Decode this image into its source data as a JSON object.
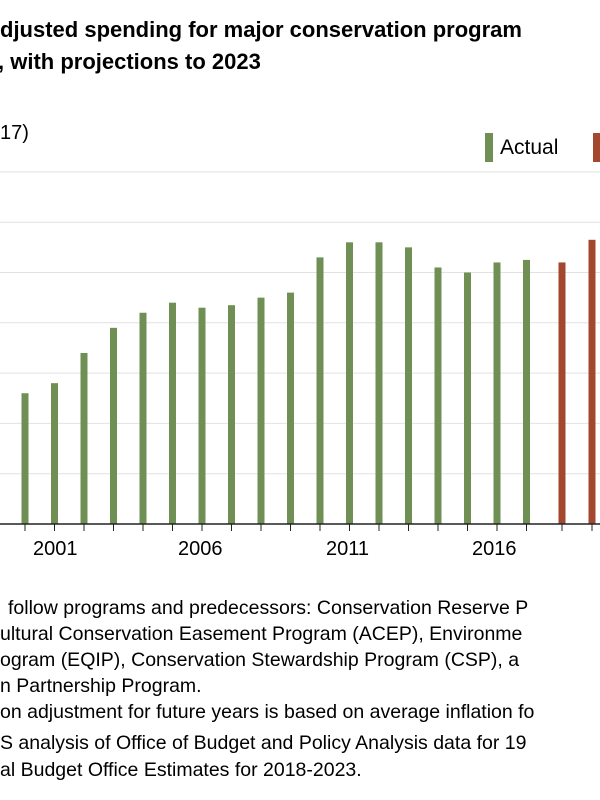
{
  "title_lines": [
    "djusted spending for major conservation program",
    ", with projections to 2023"
  ],
  "unit_label": "17)",
  "legend": [
    {
      "label": "Actual",
      "color": "#6f8f55"
    },
    {
      "label": "",
      "color": "#a3472f"
    }
  ],
  "chart_data": {
    "type": "bar",
    "title": "…djusted spending for major conservation program… , with projections to 2023",
    "ylabel": "…17)",
    "ylim": [
      0,
      7
    ],
    "grid": true,
    "legend_position": "top-right",
    "x_tick_labels": [
      "2001",
      "2006",
      "2011",
      "2016"
    ],
    "categories": [
      2000,
      2001,
      2002,
      2003,
      2004,
      2005,
      2006,
      2007,
      2008,
      2009,
      2010,
      2011,
      2012,
      2013,
      2014,
      2015,
      2016,
      2017,
      2018,
      2019
    ],
    "series": [
      {
        "name": "Actual",
        "color": "#6f8f55",
        "x": [
          2000,
          2001,
          2002,
          2003,
          2004,
          2005,
          2006,
          2007,
          2008,
          2009,
          2010,
          2011,
          2012,
          2013,
          2014,
          2015,
          2016,
          2017
        ],
        "values": [
          2.6,
          2.8,
          3.4,
          3.9,
          4.2,
          4.4,
          4.3,
          4.35,
          4.5,
          4.6,
          5.3,
          5.6,
          5.6,
          5.5,
          5.1,
          5.0,
          5.2,
          5.25
        ]
      },
      {
        "name": "",
        "color": "#a3472f",
        "x": [
          2018,
          2019
        ],
        "values": [
          5.2,
          5.65
        ]
      }
    ]
  },
  "footnote_lines": [
    "follow programs and predecessors: Conservation Reserve P",
    "ultural Conservation Easement Program (ACEP), Environme",
    "ogram (EQIP), Conservation Stewardship Program (CSP), a",
    "n Partnership Program.",
    "on adjustment for future years is based on average inflation fo",
    "S analysis of Office of Budget and Policy Analysis data for 19",
    "al Budget Office Estimates for 2018-2023."
  ]
}
